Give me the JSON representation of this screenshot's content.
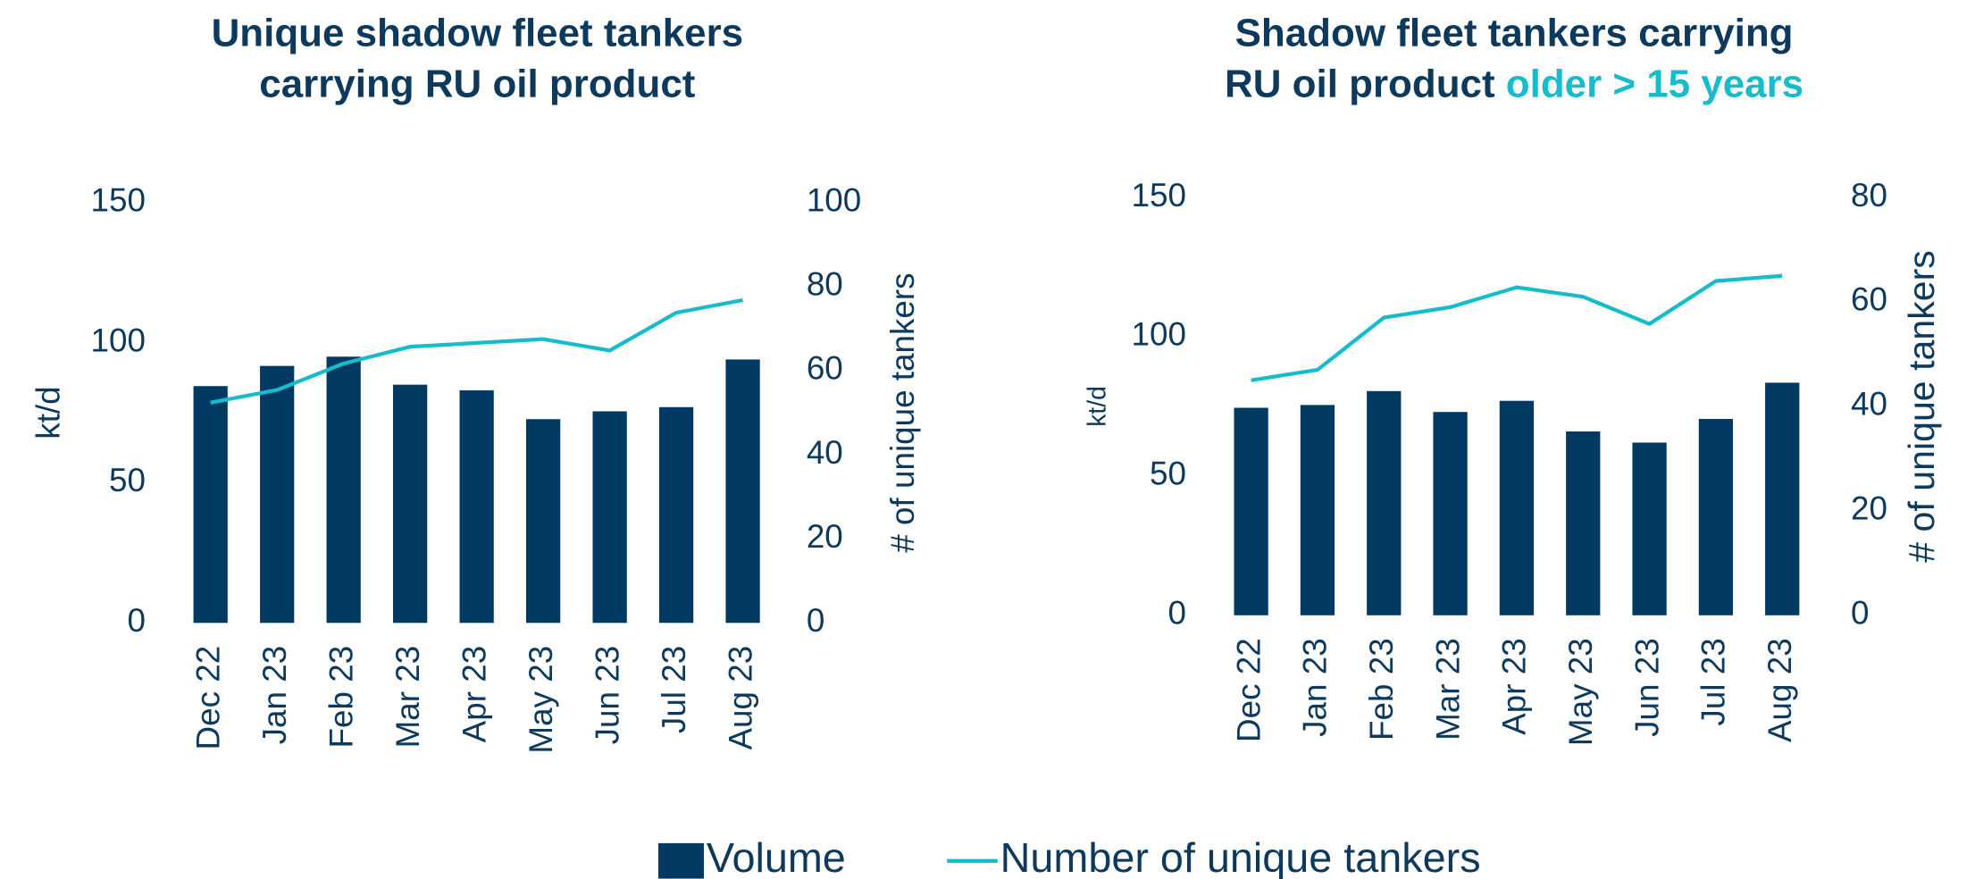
{
  "chart_data": [
    {
      "type": "combo",
      "title": [
        "Unique shadow fleet tankers",
        "carrying RU oil product"
      ],
      "ylabel": "kt/d",
      "y2label": "# of unique tankers",
      "categories": [
        "Dec 22",
        "Jan 23",
        "Feb 23",
        "Mar 23",
        "Apr 23",
        "May 23",
        "Jun 23",
        "Jul 23",
        "Aug 23"
      ],
      "series": [
        {
          "name": "Volume",
          "type": "bar",
          "color": "#003a63",
          "values": [
            84.5,
            91.7,
            95,
            85,
            83,
            72.7,
            75.5,
            77,
            94
          ]
        },
        {
          "name": "Number of unique tankers",
          "type": "line",
          "axis": "y2",
          "color": "#17bccc",
          "values": [
            52.4,
            55.4,
            61.7,
            65.7,
            66.6,
            67.5,
            64.8,
            73.8,
            76.8
          ]
        }
      ],
      "ylim": [
        0,
        150
      ],
      "yticks": [
        0,
        50,
        100,
        150
      ],
      "y2lim": [
        0,
        100
      ],
      "y2ticks": [
        0,
        20,
        40,
        60,
        80,
        100
      ]
    },
    {
      "type": "combo",
      "title": [
        "Shadow fleet tankers carrying",
        "RU oil product"
      ],
      "title_highlight": "older > 15 years",
      "title_highlight_color": "#17bccc",
      "ylabel": "kt/d",
      "y2label": "# of unique tankers",
      "categories": [
        "Dec 22",
        "Jan 23",
        "Feb 23",
        "Mar 23",
        "Apr 23",
        "May 23",
        "Jun 23",
        "Jul 23",
        "Aug 23"
      ],
      "series": [
        {
          "name": "Volume",
          "type": "bar",
          "color": "#003a63",
          "values": [
            74.5,
            75.5,
            80.5,
            73,
            77,
            66,
            62,
            70.5,
            83.5
          ]
        },
        {
          "name": "Number of unique tankers",
          "type": "line",
          "axis": "y2",
          "color": "#17bccc",
          "values": [
            45,
            47,
            57,
            59,
            62.8,
            61,
            55.8,
            64,
            65
          ]
        }
      ],
      "ylim": [
        0,
        150
      ],
      "yticks": [
        0,
        50,
        100,
        150
      ],
      "y2lim": [
        0,
        80
      ],
      "y2ticks": [
        0,
        20,
        40,
        60,
        80
      ]
    }
  ]
}
